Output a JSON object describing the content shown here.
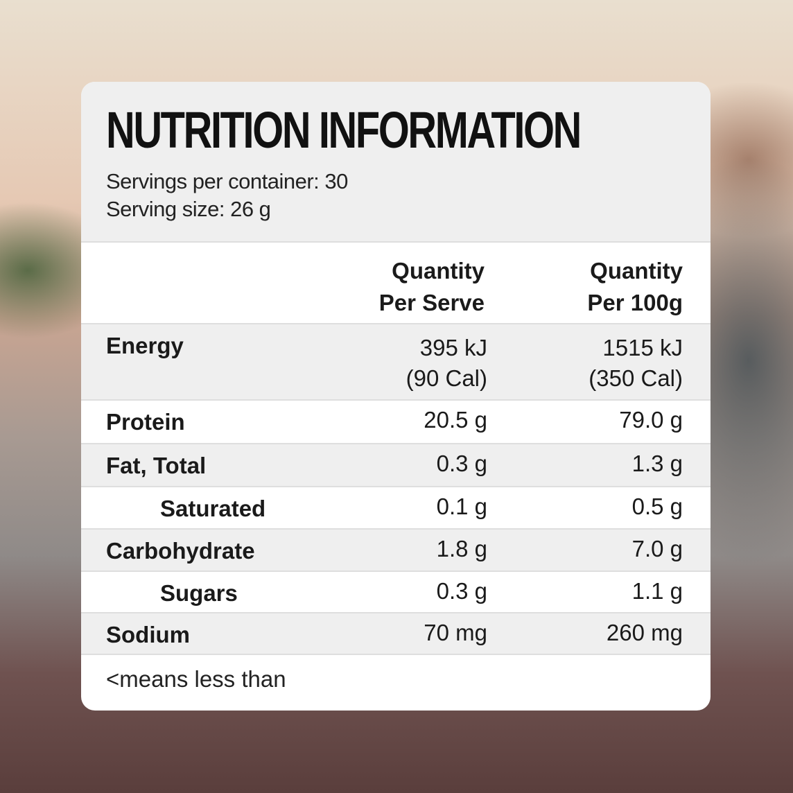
{
  "title": "NUTRITION INFORMATION",
  "servings_per_container": "Servings per container: 30",
  "serving_size": "Serving size: 26 g",
  "columns": {
    "per_serve": [
      "Quantity",
      "Per Serve"
    ],
    "per_100g": [
      "Quantity",
      "Per 100g"
    ]
  },
  "rows": [
    {
      "label": "Energy",
      "serve": [
        "395 kJ",
        "(90 Cal)"
      ],
      "per100": [
        "1515 kJ",
        "(350 Cal)"
      ]
    },
    {
      "label": "Protein",
      "serve": "20.5 g",
      "per100": "79.0 g"
    },
    {
      "label": "Fat, Total",
      "serve": "0.3 g",
      "per100": "1.3 g"
    },
    {
      "label": "Saturated",
      "serve": "0.1 g",
      "per100": "0.5 g"
    },
    {
      "label": "Carbohydrate",
      "serve": "1.8 g",
      "per100": "7.0 g"
    },
    {
      "label": "Sugars",
      "serve": "0.3 g",
      "per100": "1.1 g"
    },
    {
      "label": "Sodium",
      "serve": "70 mg",
      "per100": "260 mg"
    }
  ],
  "footnote": "<means less than"
}
